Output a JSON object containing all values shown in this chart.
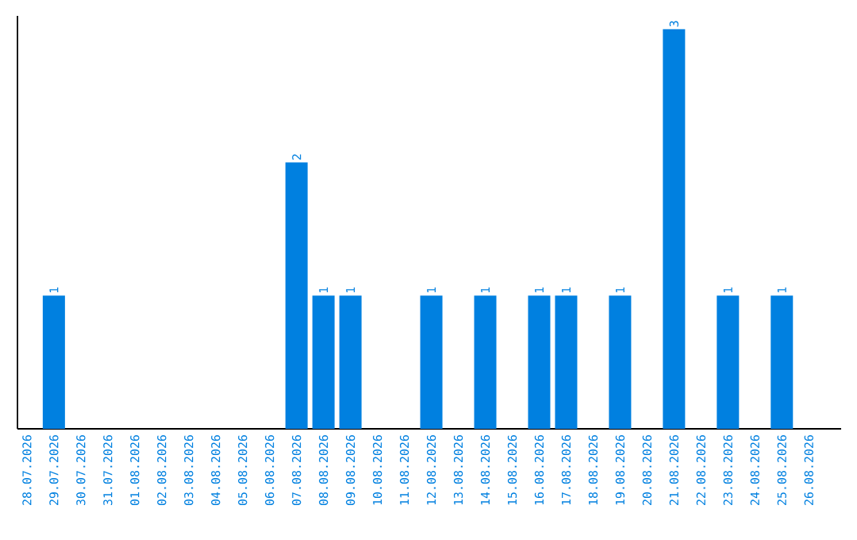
{
  "chart_data": {
    "type": "bar",
    "categories": [
      "28.07.2026",
      "29.07.2026",
      "30.07.2026",
      "31.07.2026",
      "01.08.2026",
      "02.08.2026",
      "03.08.2026",
      "04.08.2026",
      "05.08.2026",
      "06.08.2026",
      "07.08.2026",
      "08.08.2026",
      "09.08.2026",
      "10.08.2026",
      "11.08.2026",
      "12.08.2026",
      "13.08.2026",
      "14.08.2026",
      "15.08.2026",
      "16.08.2026",
      "17.08.2026",
      "18.08.2026",
      "19.08.2026",
      "20.08.2026",
      "21.08.2026",
      "22.08.2026",
      "23.08.2026",
      "24.08.2026",
      "25.08.2026",
      "26.08.2026"
    ],
    "values": [
      0,
      1,
      0,
      0,
      0,
      0,
      0,
      0,
      0,
      0,
      2,
      1,
      1,
      0,
      0,
      1,
      0,
      1,
      0,
      1,
      1,
      0,
      1,
      0,
      3,
      0,
      1,
      0,
      1,
      0
    ],
    "value_labels": [
      null,
      "1",
      null,
      null,
      null,
      null,
      null,
      null,
      null,
      null,
      "2",
      "1",
      "1",
      null,
      null,
      "1",
      null,
      "1",
      null,
      "1",
      "1",
      null,
      "1",
      null,
      "3",
      null,
      "1",
      null,
      "1",
      null
    ],
    "color": "#0080e0",
    "ylim": [
      0,
      3.1
    ],
    "grid": false
  }
}
